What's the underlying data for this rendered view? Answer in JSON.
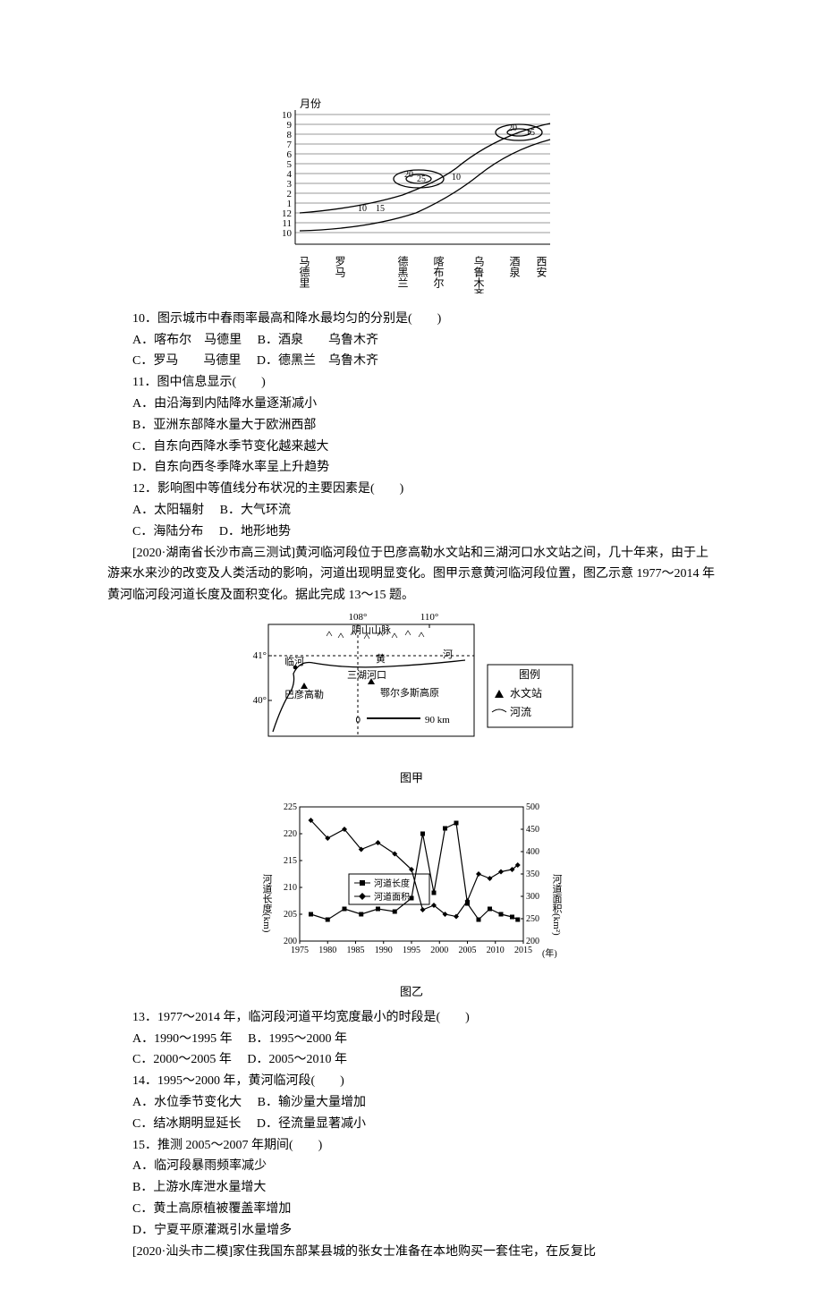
{
  "fig1": {
    "axis_label_top": "月份",
    "y_ticks": [
      "10",
      "9",
      "8",
      "7",
      "6",
      "5",
      "4",
      "3",
      "2",
      "1",
      "12",
      "11",
      "10"
    ],
    "x_cities": [
      "马德里",
      "罗马",
      "德黑兰",
      "喀布尔",
      "乌鲁木齐",
      "酒泉",
      "西安"
    ],
    "contour_labels": [
      "10",
      "15",
      "20",
      "25",
      "10",
      "20",
      "15"
    ],
    "axis_color": "#000000",
    "line_color": "#000000",
    "bg": "#ffffff",
    "font_size": 12
  },
  "q10": {
    "stem": "10．图示城市中春雨率最高和降水最均匀的分别是(　　)",
    "A": "A．喀布尔　马德里",
    "B": "B．酒泉　　乌鲁木齐",
    "C": "C．罗马　　马德里",
    "D": "D．德黑兰　乌鲁木齐"
  },
  "q11": {
    "stem": "11．图中信息显示(　　)",
    "A": "A．由沿海到内陆降水量逐渐减小",
    "B": "B．亚洲东部降水量大于欧洲西部",
    "C": "C．自东向西降水季节变化越来越大",
    "D": "D．自东向西冬季降水率呈上升趋势"
  },
  "q12": {
    "stem": "12．影响图中等值线分布状况的主要因素是(　　)",
    "A": "A．太阳辐射",
    "B": "B．大气环流",
    "C": "C．海陆分布",
    "D": "D．地形地势"
  },
  "ctx2": {
    "text": "[2020·湖南省长沙市高三测试]黄河临河段位于巴彦高勒水文站和三湖河口水文站之间，几十年来，由于上游来水来沙的改变及人类活动的影响，河道出现明显变化。图甲示意黄河临河段位置，图乙示意 1977～2014 年黄河临河段河道长度及面积变化。据此完成 13～15 题。"
  },
  "map": {
    "lon_ticks": [
      "108°",
      "110°"
    ],
    "lat_ticks": [
      "41°",
      "40°"
    ],
    "labels": {
      "yinshan": "阴山山脉",
      "linhe": "临河",
      "huang": "黄",
      "he": "河",
      "bayan": "巴彦高勒",
      "sanhu": "三湖河口",
      "eerduosi": "鄂尔多斯高原",
      "scale_0": "0",
      "scale_90": "90 km"
    },
    "legend": {
      "title": "图例",
      "station": "水文站",
      "river": "河流"
    },
    "caption": "图甲",
    "frame_color": "#000000",
    "bg": "#ffffff",
    "font_size": 12
  },
  "chart": {
    "left_axis_label": "河道长度(km)",
    "right_axis_label": "河道面积(km²)",
    "x_label": "(年)",
    "left_ticks": [
      "225",
      "220",
      "215",
      "210",
      "205",
      "200"
    ],
    "right_ticks": [
      "500",
      "450",
      "400",
      "350",
      "300",
      "250",
      "200"
    ],
    "x_ticks": [
      "1975",
      "1980",
      "1985",
      "1990",
      "1995",
      "2000",
      "2005",
      "2010",
      "2015"
    ],
    "legend": {
      "len": "河道长度",
      "area": "河道面积"
    },
    "caption": "图乙",
    "length_series": [
      [
        1977,
        205
      ],
      [
        1980,
        204
      ],
      [
        1983,
        206
      ],
      [
        1986,
        205
      ],
      [
        1989,
        206
      ],
      [
        1992,
        205.5
      ],
      [
        1995,
        208
      ],
      [
        1997,
        220
      ],
      [
        1999,
        209
      ],
      [
        2001,
        221
      ],
      [
        2003,
        222
      ],
      [
        2005,
        207
      ],
      [
        2007,
        204
      ],
      [
        2009,
        206
      ],
      [
        2011,
        205
      ],
      [
        2013,
        204.5
      ],
      [
        2014,
        204
      ]
    ],
    "area_series": [
      [
        1977,
        470
      ],
      [
        1980,
        430
      ],
      [
        1983,
        450
      ],
      [
        1986,
        405
      ],
      [
        1989,
        420
      ],
      [
        1992,
        395
      ],
      [
        1995,
        360
      ],
      [
        1997,
        270
      ],
      [
        1999,
        280
      ],
      [
        2001,
        260
      ],
      [
        2003,
        255
      ],
      [
        2005,
        290
      ],
      [
        2007,
        350
      ],
      [
        2009,
        340
      ],
      [
        2011,
        355
      ],
      [
        2013,
        360
      ],
      [
        2014,
        370
      ]
    ],
    "left_lim": [
      200,
      225
    ],
    "right_lim": [
      200,
      500
    ],
    "x_lim": [
      1975,
      2015
    ],
    "marker_len": "square",
    "marker_area": "diamond",
    "line_color": "#000000",
    "bg": "#ffffff",
    "font_size": 11
  },
  "q13": {
    "stem": "13．1977～2014 年，临河段河道平均宽度最小的时段是(　　)",
    "A": "A．1990～1995 年",
    "B": "B．1995～2000 年",
    "C": "C．2000～2005 年",
    "D": "D．2005～2010 年"
  },
  "q14": {
    "stem": "14．1995～2000 年，黄河临河段(　　)",
    "A": "A．水位季节变化大",
    "B": "B．输沙量大量增加",
    "C": "C．结冰期明显延长",
    "D": "D．径流量显著减小"
  },
  "q15": {
    "stem": "15．推测 2005～2007 年期间(　　)",
    "A": "A．临河段暴雨频率减少",
    "B": "B．上游水库泄水量增大",
    "C": "C．黄土高原植被覆盖率增加",
    "D": "D．宁夏平原灌溉引水量增多"
  },
  "ctx3": {
    "text": "[2020·汕头市二模]家住我国东部某县城的张女士准备在本地购买一套住宅，在反复比"
  }
}
